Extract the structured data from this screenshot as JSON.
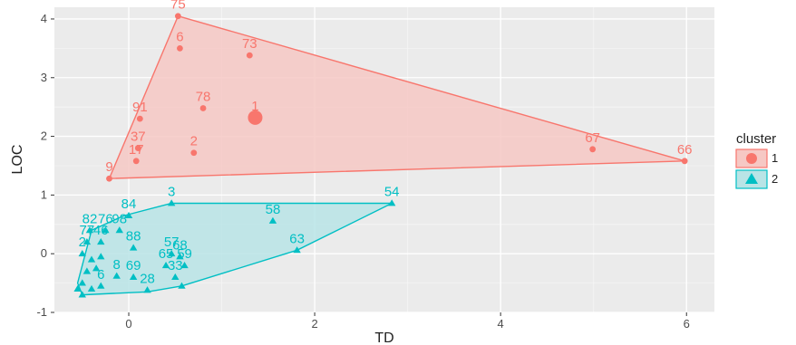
{
  "chart_data": {
    "type": "scatter",
    "xlabel": "TD",
    "ylabel": "LOC",
    "xlim": [
      -0.8,
      6.3
    ],
    "ylim": [
      -1.0,
      4.2
    ],
    "x_ticks": [
      0,
      2,
      4,
      6
    ],
    "y_ticks": [
      -1,
      0,
      1,
      2,
      3,
      4
    ],
    "x_tick_labels": [
      "0",
      "2",
      "4",
      "6"
    ],
    "y_tick_labels": [
      "-1",
      "0",
      "1",
      "2",
      "3",
      "4"
    ],
    "grid": true,
    "legend": {
      "title": "cluster",
      "position": "right",
      "entries": [
        {
          "label": "1",
          "color": "#f8766d",
          "shape": "circle"
        },
        {
          "label": "2",
          "color": "#00bfc4",
          "shape": "triangle"
        }
      ]
    },
    "series": [
      {
        "name": "1",
        "color": "#f8766d",
        "fill": "#f6c8c4",
        "shape": "circle",
        "hull": [
          [
            0.53,
            4.05
          ],
          [
            5.98,
            1.58
          ],
          [
            -0.21,
            1.28
          ]
        ],
        "points": [
          {
            "x": 0.53,
            "y": 4.05,
            "label": "75"
          },
          {
            "x": 0.55,
            "y": 3.5,
            "label": "6"
          },
          {
            "x": 1.3,
            "y": 3.38,
            "label": "73"
          },
          {
            "x": 0.8,
            "y": 2.48,
            "label": "78"
          },
          {
            "x": 1.36,
            "y": 2.32,
            "label": "1",
            "size": "large"
          },
          {
            "x": 0.12,
            "y": 2.3,
            "label": "91"
          },
          {
            "x": 0.1,
            "y": 1.8,
            "label": "37"
          },
          {
            "x": 0.08,
            "y": 1.58,
            "label": "17"
          },
          {
            "x": 0.7,
            "y": 1.72,
            "label": "2"
          },
          {
            "x": -0.21,
            "y": 1.28,
            "label": "9"
          },
          {
            "x": 4.99,
            "y": 1.78,
            "label": "67"
          },
          {
            "x": 5.98,
            "y": 1.58,
            "label": "66"
          }
        ]
      },
      {
        "name": "2",
        "color": "#00bfc4",
        "fill": "#b9e4e6",
        "shape": "triangle",
        "hull": [
          [
            0.46,
            0.86
          ],
          [
            2.83,
            0.86
          ],
          [
            1.81,
            0.06
          ],
          [
            0.57,
            -0.55
          ],
          [
            0.2,
            -0.65
          ],
          [
            -0.5,
            -0.7
          ],
          [
            -0.55,
            -0.5
          ],
          [
            -0.4,
            0.4
          ],
          [
            -0.05,
            0.65
          ]
        ],
        "points": [
          {
            "x": 0.46,
            "y": 0.86,
            "label": "3"
          },
          {
            "x": 2.83,
            "y": 0.86,
            "label": "54"
          },
          {
            "x": 1.55,
            "y": 0.56,
            "label": "58"
          },
          {
            "x": 1.81,
            "y": 0.06,
            "label": "63"
          },
          {
            "x": 0.0,
            "y": 0.65,
            "label": "84"
          },
          {
            "x": 0.05,
            "y": 0.1,
            "label": "88"
          },
          {
            "x": 0.46,
            "y": 0.0,
            "label": "57"
          },
          {
            "x": 0.55,
            "y": -0.05,
            "label": "68"
          },
          {
            "x": 0.4,
            "y": -0.2,
            "label": "65"
          },
          {
            "x": 0.6,
            "y": -0.2,
            "label": "59"
          },
          {
            "x": 0.5,
            "y": -0.4,
            "label": "33"
          },
          {
            "x": 0.05,
            "y": -0.4,
            "label": "69"
          },
          {
            "x": -0.13,
            "y": -0.38,
            "label": "8"
          },
          {
            "x": 0.2,
            "y": -0.62,
            "label": "28"
          },
          {
            "x": 0.57,
            "y": -0.55,
            "label": ""
          },
          {
            "x": -0.42,
            "y": 0.4,
            "label": "82"
          },
          {
            "x": -0.25,
            "y": 0.4,
            "label": "76"
          },
          {
            "x": -0.1,
            "y": 0.4,
            "label": "98"
          },
          {
            "x": -0.45,
            "y": 0.2,
            "label": "77"
          },
          {
            "x": -0.3,
            "y": 0.2,
            "label": "46"
          },
          {
            "x": -0.5,
            "y": 0.0,
            "label": "2"
          },
          {
            "x": -0.4,
            "y": -0.1,
            "label": ""
          },
          {
            "x": -0.3,
            "y": -0.05,
            "label": ""
          },
          {
            "x": -0.45,
            "y": -0.3,
            "label": ""
          },
          {
            "x": -0.35,
            "y": -0.25,
            "label": ""
          },
          {
            "x": -0.5,
            "y": -0.5,
            "label": ""
          },
          {
            "x": -0.4,
            "y": -0.6,
            "label": ""
          },
          {
            "x": -0.3,
            "y": -0.55,
            "label": "6"
          },
          {
            "x": -0.55,
            "y": -0.6,
            "label": ""
          },
          {
            "x": -0.5,
            "y": -0.7,
            "label": ""
          }
        ]
      }
    ]
  }
}
